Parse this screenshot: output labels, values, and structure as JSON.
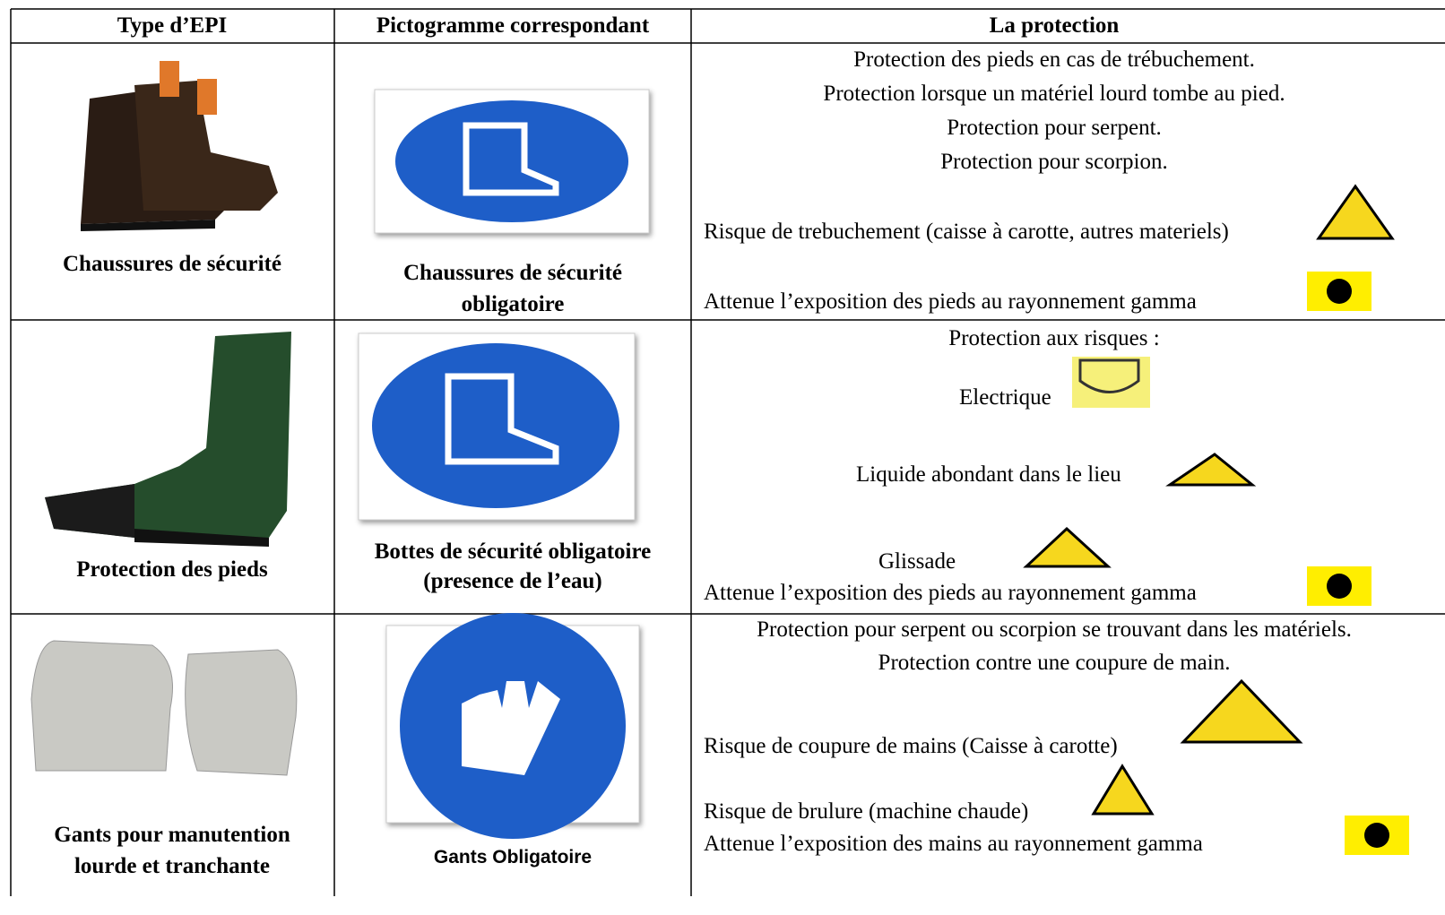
{
  "table": {
    "headers": [
      "Type d’EPI",
      "Pictogramme correspondant",
      "La protection"
    ],
    "rows": [
      {
        "equipment": [
          "Chaussures de sécurité"
        ],
        "pictogram": [
          "Chaussures de sécurité",
          "obligatoire"
        ],
        "protection": [
          "Protection des pieds en cas de trébuchement.",
          "Protection lorsque un matériel lourd tombe au pied.",
          "Protection pour serpent.",
          "Protection pour scorpion.",
          "Risque de trebuchement (caisse à carotte, autres materiels)",
          "Attenue l’exposition des pieds au rayonnement gamma"
        ]
      },
      {
        "equipment": [
          "Protection des pieds"
        ],
        "pictogram": [
          "Bottes de sécurité obligatoire",
          "(presence de l’eau)"
        ],
        "protection": [
          "Protection aux risques :",
          "Electrique",
          "Liquide abondant dans le lieu",
          "Glissade",
          "Attenue l’exposition des pieds au rayonnement gamma"
        ]
      },
      {
        "equipment": [
          "Gants pour manutention",
          "lourde et tranchante"
        ],
        "pictogram": [
          "Gants Obligatoire"
        ],
        "protection": [
          "Protection pour serpent ou scorpion se trouvant dans les matériels.",
          "Protection contre une coupure de main.",
          "Risque de coupure de mains (Caisse à carotte)",
          "Risque de brulure (machine chaude)",
          "Attenue l’exposition des mains au rayonnement gamma"
        ]
      }
    ]
  }
}
